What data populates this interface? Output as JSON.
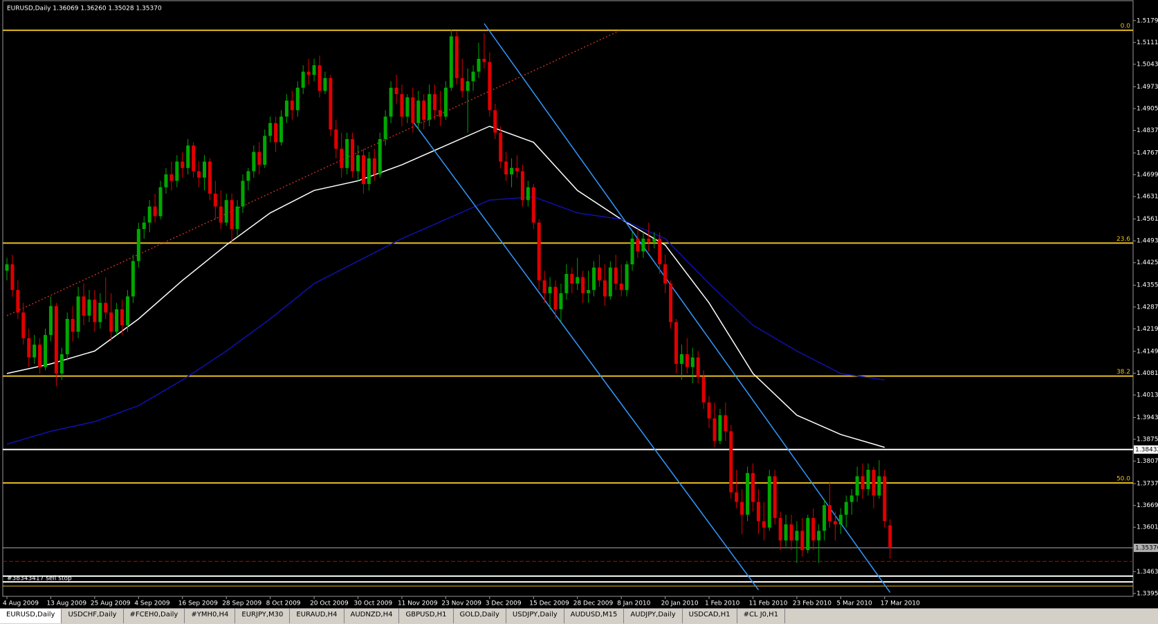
{
  "chart_data": {
    "type": "candlestick",
    "header": "EURUSD,Daily  1.36069 1.36260 1.35028 1.35370",
    "annotation": "#38343417 sell stop",
    "up_color": "#00a800",
    "down_color": "#e00000",
    "ylim": [
      1.3386,
      1.5241
    ],
    "yticks": [
      {
        "value": 1.5179,
        "label": "1.51790"
      },
      {
        "value": 1.5111,
        "label": "1.51110"
      },
      {
        "value": 1.5043,
        "label": "1.50430"
      },
      {
        "value": 1.4973,
        "label": "1.49730"
      },
      {
        "value": 1.4905,
        "label": "1.49050"
      },
      {
        "value": 1.4837,
        "label": "1.48370"
      },
      {
        "value": 1.4767,
        "label": "1.47670"
      },
      {
        "value": 1.4699,
        "label": "1.46990"
      },
      {
        "value": 1.4631,
        "label": "1.46310"
      },
      {
        "value": 1.4561,
        "label": "1.45610"
      },
      {
        "value": 1.4493,
        "label": "1.44930"
      },
      {
        "value": 1.4425,
        "label": "1.44250"
      },
      {
        "value": 1.4355,
        "label": "1.43550"
      },
      {
        "value": 1.4287,
        "label": "1.42870"
      },
      {
        "value": 1.4219,
        "label": "1.42190"
      },
      {
        "value": 1.4149,
        "label": "1.41490"
      },
      {
        "value": 1.4081,
        "label": "1.40810"
      },
      {
        "value": 1.4013,
        "label": "1.40130"
      },
      {
        "value": 1.3943,
        "label": "1.39430"
      },
      {
        "value": 1.3875,
        "label": "1.38750"
      },
      {
        "value": 1.3807,
        "label": "1.38070"
      },
      {
        "value": 1.3737,
        "label": "1.37370"
      },
      {
        "value": 1.3669,
        "label": "1.36690"
      },
      {
        "value": 1.3601,
        "label": "1.36010"
      },
      {
        "value": 1.3463,
        "label": "1.34630"
      },
      {
        "value": 1.3395,
        "label": "1.33950"
      }
    ],
    "categories": [
      "4 Aug 2009",
      null,
      null,
      null,
      null,
      null,
      null,
      null,
      "13 Aug 2009",
      null,
      null,
      null,
      null,
      null,
      null,
      null,
      "25 Aug 2009",
      null,
      null,
      null,
      null,
      null,
      null,
      null,
      "4 Sep 2009",
      null,
      null,
      null,
      null,
      null,
      null,
      null,
      "16 Sep 2009",
      null,
      null,
      null,
      null,
      null,
      null,
      null,
      "28 Sep 2009",
      null,
      null,
      null,
      null,
      null,
      null,
      null,
      "8 Oct 2009",
      null,
      null,
      null,
      null,
      null,
      null,
      null,
      "20 Oct 2009",
      null,
      null,
      null,
      null,
      null,
      null,
      null,
      "30 Oct 2009",
      null,
      null,
      null,
      null,
      null,
      null,
      null,
      "11 Nov 2009",
      null,
      null,
      null,
      null,
      null,
      null,
      null,
      "23 Nov 2009",
      null,
      null,
      null,
      null,
      null,
      null,
      null,
      "3 Dec 2009",
      null,
      null,
      null,
      null,
      null,
      null,
      null,
      "15 Dec 2009",
      null,
      null,
      null,
      null,
      null,
      null,
      null,
      "28 Dec 2009",
      null,
      null,
      null,
      null,
      null,
      null,
      null,
      "8 Jan 2010",
      null,
      null,
      null,
      null,
      null,
      null,
      null,
      "20 Jan 2010",
      null,
      null,
      null,
      null,
      null,
      null,
      null,
      "1 Feb 2010",
      null,
      null,
      null,
      null,
      null,
      null,
      null,
      "11 Feb 2010",
      null,
      null,
      null,
      null,
      null,
      null,
      null,
      "23 Feb 2010",
      null,
      null,
      null,
      null,
      null,
      null,
      null,
      "5 Mar 2010",
      null,
      null,
      null,
      null,
      null,
      null,
      null,
      "17 Mar 2010",
      null
    ],
    "candles": [
      [
        1.44,
        1.444,
        1.437,
        1.442
      ],
      [
        1.442,
        1.445,
        1.432,
        1.434
      ],
      [
        1.434,
        1.437,
        1.425,
        1.427
      ],
      [
        1.427,
        1.43,
        1.417,
        1.419
      ],
      [
        1.419,
        1.422,
        1.41,
        1.413
      ],
      [
        1.413,
        1.42,
        1.411,
        1.417
      ],
      [
        1.417,
        1.419,
        1.408,
        1.41
      ],
      [
        1.41,
        1.422,
        1.409,
        1.42
      ],
      [
        1.42,
        1.432,
        1.418,
        1.429
      ],
      [
        1.429,
        1.43,
        1.404,
        1.408
      ],
      [
        1.408,
        1.416,
        1.406,
        1.414
      ],
      [
        1.414,
        1.427,
        1.412,
        1.425
      ],
      [
        1.425,
        1.429,
        1.418,
        1.421
      ],
      [
        1.421,
        1.435,
        1.419,
        1.432
      ],
      [
        1.432,
        1.436,
        1.423,
        1.426
      ],
      [
        1.426,
        1.434,
        1.424,
        1.431
      ],
      [
        1.431,
        1.434,
        1.421,
        1.424
      ],
      [
        1.424,
        1.433,
        1.422,
        1.43
      ],
      [
        1.43,
        1.438,
        1.425,
        1.427
      ],
      [
        1.427,
        1.433,
        1.418,
        1.421
      ],
      [
        1.421,
        1.43,
        1.42,
        1.428
      ],
      [
        1.428,
        1.431,
        1.42,
        1.423
      ],
      [
        1.423,
        1.434,
        1.421,
        1.432
      ],
      [
        1.432,
        1.445,
        1.43,
        1.443
      ],
      [
        1.443,
        1.455,
        1.441,
        1.453
      ],
      [
        1.453,
        1.457,
        1.45,
        1.455
      ],
      [
        1.455,
        1.462,
        1.452,
        1.46
      ],
      [
        1.46,
        1.464,
        1.455,
        1.457
      ],
      [
        1.457,
        1.468,
        1.456,
        1.466
      ],
      [
        1.466,
        1.472,
        1.464,
        1.47
      ],
      [
        1.47,
        1.474,
        1.465,
        1.468
      ],
      [
        1.468,
        1.476,
        1.466,
        1.474
      ],
      [
        1.474,
        1.477,
        1.469,
        1.472
      ],
      [
        1.472,
        1.481,
        1.47,
        1.479
      ],
      [
        1.479,
        1.48,
        1.469,
        1.471
      ],
      [
        1.471,
        1.474,
        1.466,
        1.469
      ],
      [
        1.469,
        1.476,
        1.465,
        1.474
      ],
      [
        1.474,
        1.475,
        1.462,
        1.464
      ],
      [
        1.464,
        1.468,
        1.456,
        1.46
      ],
      [
        1.46,
        1.465,
        1.453,
        1.455
      ],
      [
        1.455,
        1.464,
        1.454,
        1.462
      ],
      [
        1.462,
        1.464,
        1.449,
        1.453
      ],
      [
        1.453,
        1.462,
        1.451,
        1.46
      ],
      [
        1.46,
        1.47,
        1.458,
        1.468
      ],
      [
        1.468,
        1.472,
        1.465,
        1.471
      ],
      [
        1.471,
        1.479,
        1.469,
        1.477
      ],
      [
        1.477,
        1.48,
        1.47,
        1.473
      ],
      [
        1.473,
        1.484,
        1.472,
        1.482
      ],
      [
        1.482,
        1.488,
        1.48,
        1.486
      ],
      [
        1.486,
        1.488,
        1.477,
        1.48
      ],
      [
        1.48,
        1.49,
        1.479,
        1.488
      ],
      [
        1.488,
        1.495,
        1.486,
        1.493
      ],
      [
        1.493,
        1.496,
        1.487,
        1.49
      ],
      [
        1.49,
        1.499,
        1.488,
        1.497
      ],
      [
        1.497,
        1.504,
        1.495,
        1.502
      ],
      [
        1.502,
        1.506,
        1.498,
        1.501
      ],
      [
        1.501,
        1.506,
        1.499,
        1.504
      ],
      [
        1.504,
        1.507,
        1.494,
        1.496
      ],
      [
        1.496,
        1.502,
        1.495,
        1.5
      ],
      [
        1.5,
        1.501,
        1.482,
        1.484
      ],
      [
        1.484,
        1.487,
        1.475,
        1.478
      ],
      [
        1.478,
        1.483,
        1.469,
        1.472
      ],
      [
        1.472,
        1.483,
        1.47,
        1.481
      ],
      [
        1.481,
        1.483,
        1.469,
        1.471
      ],
      [
        1.471,
        1.479,
        1.468,
        1.476
      ],
      [
        1.476,
        1.478,
        1.464,
        1.467
      ],
      [
        1.467,
        1.477,
        1.465,
        1.475
      ],
      [
        1.475,
        1.478,
        1.468,
        1.47
      ],
      [
        1.47,
        1.483,
        1.469,
        1.481
      ],
      [
        1.481,
        1.49,
        1.479,
        1.488
      ],
      [
        1.488,
        1.499,
        1.486,
        1.497
      ],
      [
        1.497,
        1.501,
        1.492,
        1.495
      ],
      [
        1.495,
        1.498,
        1.485,
        1.488
      ],
      [
        1.488,
        1.495,
        1.486,
        1.494
      ],
      [
        1.494,
        1.497,
        1.483,
        1.486
      ],
      [
        1.486,
        1.496,
        1.484,
        1.493
      ],
      [
        1.493,
        1.495,
        1.484,
        1.487
      ],
      [
        1.487,
        1.498,
        1.485,
        1.495
      ],
      [
        1.495,
        1.498,
        1.487,
        1.49
      ],
      [
        1.49,
        1.496,
        1.485,
        1.488
      ],
      [
        1.488,
        1.499,
        1.487,
        1.497
      ],
      [
        1.497,
        1.515,
        1.496,
        1.513
      ],
      [
        1.513,
        1.5145,
        1.498,
        1.5
      ],
      [
        1.5,
        1.506,
        1.494,
        1.496
      ],
      [
        1.496,
        1.503,
        1.483,
        1.499
      ],
      [
        1.499,
        1.504,
        1.496,
        1.502
      ],
      [
        1.502,
        1.511,
        1.5,
        1.506
      ],
      [
        1.506,
        1.514,
        1.503,
        1.505
      ],
      [
        1.505,
        1.508,
        1.488,
        1.49
      ],
      [
        1.49,
        1.492,
        1.481,
        1.483
      ],
      [
        1.483,
        1.485,
        1.472,
        1.474
      ],
      [
        1.474,
        1.477,
        1.468,
        1.47
      ],
      [
        1.47,
        1.475,
        1.466,
        1.472
      ],
      [
        1.472,
        1.476,
        1.469,
        1.471
      ],
      [
        1.471,
        1.473,
        1.46,
        1.462
      ],
      [
        1.462,
        1.468,
        1.46,
        1.466
      ],
      [
        1.466,
        1.467,
        1.453,
        1.455
      ],
      [
        1.455,
        1.456,
        1.434,
        1.437
      ],
      [
        1.437,
        1.44,
        1.43,
        1.433
      ],
      [
        1.433,
        1.438,
        1.428,
        1.435
      ],
      [
        1.435,
        1.437,
        1.425,
        1.428
      ],
      [
        1.428,
        1.436,
        1.424,
        1.433
      ],
      [
        1.433,
        1.442,
        1.431,
        1.439
      ],
      [
        1.439,
        1.441,
        1.433,
        1.436
      ],
      [
        1.436,
        1.444,
        1.434,
        1.438
      ],
      [
        1.438,
        1.44,
        1.43,
        1.433
      ],
      [
        1.433,
        1.44,
        1.43,
        1.434
      ],
      [
        1.434,
        1.443,
        1.432,
        1.441
      ],
      [
        1.441,
        1.445,
        1.435,
        1.437
      ],
      [
        1.437,
        1.442,
        1.429,
        1.432
      ],
      [
        1.432,
        1.443,
        1.431,
        1.441
      ],
      [
        1.441,
        1.445,
        1.434,
        1.436
      ],
      [
        1.436,
        1.442,
        1.432,
        1.434
      ],
      [
        1.434,
        1.443,
        1.432,
        1.442
      ],
      [
        1.442,
        1.452,
        1.44,
        1.45
      ],
      [
        1.45,
        1.453,
        1.444,
        1.446
      ],
      [
        1.446,
        1.452,
        1.444,
        1.45
      ],
      [
        1.45,
        1.455,
        1.446,
        1.449
      ],
      [
        1.449,
        1.452,
        1.447,
        1.45
      ],
      [
        1.45,
        1.452,
        1.439,
        1.442
      ],
      [
        1.442,
        1.445,
        1.433,
        1.436
      ],
      [
        1.436,
        1.437,
        1.422,
        1.424
      ],
      [
        1.424,
        1.425,
        1.408,
        1.411
      ],
      [
        1.411,
        1.417,
        1.406,
        1.414
      ],
      [
        1.414,
        1.419,
        1.408,
        1.41
      ],
      [
        1.41,
        1.416,
        1.405,
        1.413
      ],
      [
        1.413,
        1.415,
        1.405,
        1.407
      ],
      [
        1.407,
        1.409,
        1.397,
        1.399
      ],
      [
        1.399,
        1.401,
        1.391,
        1.394
      ],
      [
        1.394,
        1.399,
        1.385,
        1.387
      ],
      [
        1.387,
        1.397,
        1.386,
        1.395
      ],
      [
        1.395,
        1.399,
        1.387,
        1.39
      ],
      [
        1.39,
        1.392,
        1.369,
        1.371
      ],
      [
        1.371,
        1.378,
        1.366,
        1.368
      ],
      [
        1.368,
        1.372,
        1.358,
        1.364
      ],
      [
        1.364,
        1.379,
        1.362,
        1.377
      ],
      [
        1.377,
        1.38,
        1.365,
        1.368
      ],
      [
        1.368,
        1.372,
        1.358,
        1.362
      ],
      [
        1.362,
        1.368,
        1.356,
        1.36
      ],
      [
        1.36,
        1.378,
        1.359,
        1.376
      ],
      [
        1.376,
        1.378,
        1.361,
        1.363
      ],
      [
        1.363,
        1.365,
        1.353,
        1.356
      ],
      [
        1.356,
        1.364,
        1.354,
        1.361
      ],
      [
        1.361,
        1.364,
        1.353,
        1.356
      ],
      [
        1.356,
        1.362,
        1.349,
        1.359
      ],
      [
        1.359,
        1.363,
        1.351,
        1.353
      ],
      [
        1.353,
        1.364,
        1.352,
        1.363
      ],
      [
        1.363,
        1.366,
        1.353,
        1.356
      ],
      [
        1.356,
        1.361,
        1.349,
        1.359
      ],
      [
        1.359,
        1.369,
        1.356,
        1.367
      ],
      [
        1.367,
        1.374,
        1.36,
        1.362
      ],
      [
        1.362,
        1.365,
        1.356,
        1.361
      ],
      [
        1.361,
        1.366,
        1.358,
        1.364
      ],
      [
        1.364,
        1.37,
        1.36,
        1.368
      ],
      [
        1.368,
        1.372,
        1.364,
        1.37
      ],
      [
        1.37,
        1.379,
        1.368,
        1.376
      ],
      [
        1.376,
        1.38,
        1.369,
        1.372
      ],
      [
        1.372,
        1.38,
        1.37,
        1.378
      ],
      [
        1.378,
        1.379,
        1.366,
        1.37
      ],
      [
        1.37,
        1.381,
        1.369,
        1.376
      ],
      [
        1.376,
        1.378,
        1.36,
        1.362
      ],
      [
        1.3607,
        1.3626,
        1.3503,
        1.3537
      ]
    ],
    "lines": [
      {
        "color": "#ffffff",
        "x": [
          0,
          8,
          16,
          24,
          32,
          40,
          48,
          56,
          64,
          72,
          80,
          88,
          96,
          104,
          112,
          120,
          128,
          136,
          144,
          152,
          160
        ],
        "values": [
          1.408,
          1.411,
          1.415,
          1.425,
          1.437,
          1.448,
          1.458,
          1.465,
          1.468,
          1.473,
          1.479,
          1.485,
          1.48,
          1.465,
          1.456,
          1.448,
          1.43,
          1.408,
          1.395,
          1.389,
          1.385
        ]
      },
      {
        "color": "#1010b0",
        "x": [
          0,
          8,
          16,
          24,
          32,
          40,
          48,
          56,
          64,
          72,
          80,
          88,
          96,
          104,
          112,
          120,
          128,
          136,
          144,
          152,
          160
        ],
        "values": [
          1.386,
          1.39,
          1.393,
          1.398,
          1.406,
          1.415,
          1.425,
          1.436,
          1.443,
          1.45,
          1.456,
          1.462,
          1.463,
          1.458,
          1.456,
          1.45,
          1.436,
          1.423,
          1.415,
          1.408,
          1.406
        ]
      },
      {
        "color": "#3399ff",
        "x": [
          87,
          161
        ],
        "values": [
          1.517,
          1.3398
        ]
      },
      {
        "color": "#3399ff",
        "x": [
          74,
          137
        ],
        "values": [
          1.4865,
          1.3406
        ]
      },
      {
        "color": "#c03020",
        "dash": true,
        "x": [
          0,
          112
        ],
        "values": [
          1.426,
          1.515
        ]
      }
    ],
    "levels": [
      {
        "value": 1.5149,
        "label": "0.0"
      },
      {
        "value": 1.4486,
        "label": "23.6"
      },
      {
        "value": 1.4072,
        "label": "38.2"
      },
      {
        "value": 1.3739,
        "label": "50.0"
      }
    ],
    "level_color": "#e8c020",
    "price_lines": [
      {
        "value": 1.38432,
        "label": "1.38432",
        "color": "#ffffff"
      },
      {
        "value": 1.3537,
        "label": "1.35370",
        "color": "#b0b0b0"
      },
      {
        "value": 1.3495,
        "color": "#c00000",
        "dash": true
      },
      {
        "value": 1.3449,
        "color": "#ffffff"
      },
      {
        "value": 1.3431,
        "color": "#ffffff"
      },
      {
        "value": 1.3418,
        "color": "#e8c020"
      }
    ]
  },
  "tabs": [
    "EURUSD,Daily",
    "USDCHF,Daily",
    "#FCEH0,Daily",
    "#YMH0,H4",
    "EURJPY,M30",
    "EURAUD,H4",
    "AUDNZD,H4",
    "GBPUSD,H1",
    "GOLD,Daily",
    "USDJPY,Daily",
    "AUDUSD,M15",
    "AUDJPY,Daily",
    "USDCAD,H1",
    "#CL J0,H1"
  ]
}
